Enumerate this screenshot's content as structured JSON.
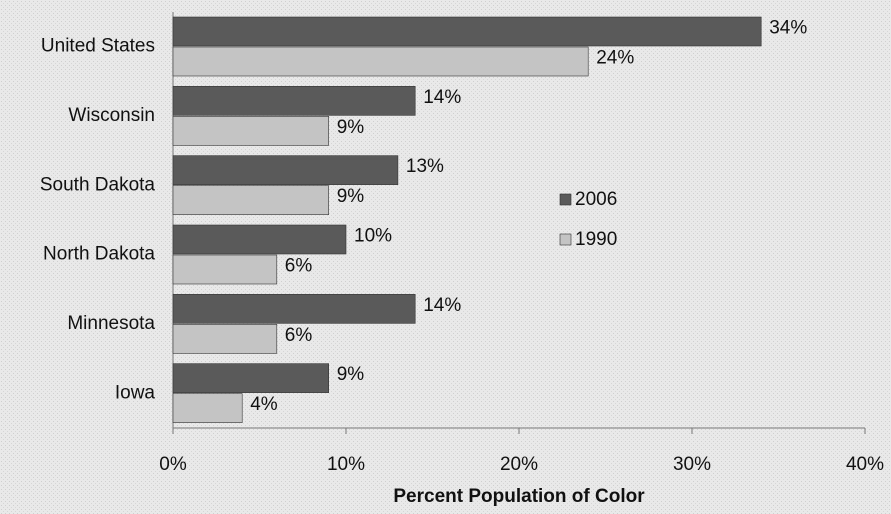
{
  "chart_data": {
    "type": "bar",
    "orientation": "horizontal",
    "x_label": "Percent Population of Color",
    "categories": [
      "United States",
      "Wisconsin",
      "South Dakota",
      "North Dakota",
      "Minnesota",
      "Iowa"
    ],
    "series": [
      {
        "name": "2006",
        "color": "#5a5a5a",
        "values": [
          34,
          14,
          13,
          10,
          14,
          9
        ],
        "value_labels": [
          "34%",
          "14%",
          "13%",
          "10%",
          "14%",
          "9%"
        ]
      },
      {
        "name": "1990",
        "color": "#c4c4c4",
        "values": [
          24,
          9,
          9,
          6,
          6,
          4
        ],
        "value_labels": [
          "24%",
          "9%",
          "9%",
          "6%",
          "6%",
          "4%"
        ]
      }
    ],
    "xlim": [
      0,
      40
    ],
    "xticks": [
      {
        "value": 0,
        "label": "0%"
      },
      {
        "value": 10,
        "label": "10%"
      },
      {
        "value": 20,
        "label": "20%"
      },
      {
        "value": 30,
        "label": "30%"
      },
      {
        "value": 40,
        "label": "40%"
      }
    ],
    "grid": false,
    "legend": "center"
  }
}
